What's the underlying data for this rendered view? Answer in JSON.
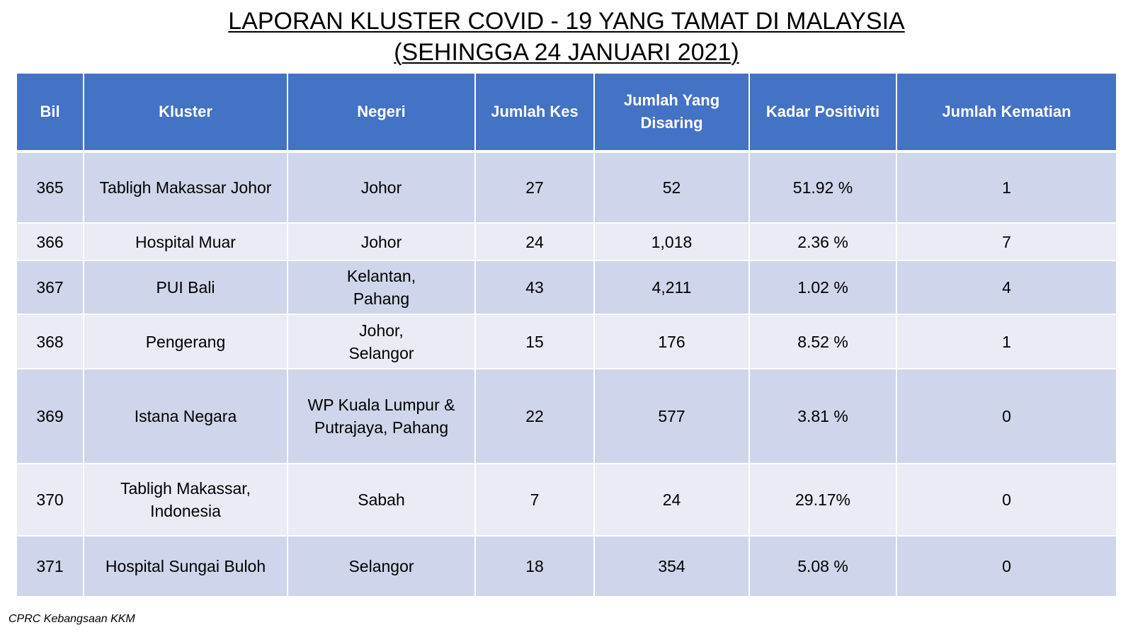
{
  "title_line1": "LAPORAN KLUSTER COVID - 19 YANG TAMAT DI MALAYSIA",
  "title_line2": "(SEHINGGA 24 JANUARI 2021)",
  "headers": {
    "bil": "Bil",
    "kluster": "Kluster",
    "negeri": "Negeri",
    "jumlah_kes": "Jumlah Kes",
    "jumlah_disaring_1": "Jumlah Yang",
    "jumlah_disaring_2": "Disaring",
    "kadar_positiviti": "Kadar Positiviti",
    "jumlah_kematian": "Jumlah Kematian"
  },
  "rows": [
    {
      "bil": "365",
      "kluster_1": "Tabligh Makassar Johor",
      "kluster_2": "",
      "negeri_1": "Johor",
      "negeri_2": "",
      "kes": "27",
      "disaring": "52",
      "positiviti": "51.92 %",
      "kematian": "1"
    },
    {
      "bil": "366",
      "kluster_1": "Hospital Muar",
      "kluster_2": "",
      "negeri_1": "Johor",
      "negeri_2": "",
      "kes": "24",
      "disaring": "1,018",
      "positiviti": "2.36 %",
      "kematian": "7"
    },
    {
      "bil": "367",
      "kluster_1": "PUI Bali",
      "kluster_2": "",
      "negeri_1": "Kelantan,",
      "negeri_2": "Pahang",
      "kes": "43",
      "disaring": "4,211",
      "positiviti": "1.02 %",
      "kematian": "4"
    },
    {
      "bil": "368",
      "kluster_1": "Pengerang",
      "kluster_2": "",
      "negeri_1": "Johor,",
      "negeri_2": "Selangor",
      "kes": "15",
      "disaring": "176",
      "positiviti": "8.52 %",
      "kematian": "1"
    },
    {
      "bil": "369",
      "kluster_1": "Istana Negara",
      "kluster_2": "",
      "negeri_1": "WP Kuala Lumpur &",
      "negeri_2": "Putrajaya, Pahang",
      "kes": "22",
      "disaring": "577",
      "positiviti": "3.81 %",
      "kematian": "0"
    },
    {
      "bil": "370",
      "kluster_1": "Tabligh Makassar,",
      "kluster_2": "Indonesia",
      "negeri_1": "Sabah",
      "negeri_2": "",
      "kes": "7",
      "disaring": "24",
      "positiviti": "29.17%",
      "kematian": "0"
    },
    {
      "bil": "371",
      "kluster_1": "Hospital Sungai Buloh",
      "kluster_2": "",
      "negeri_1": "Selangor",
      "negeri_2": "",
      "kes": "18",
      "disaring": "354",
      "positiviti": "5.08 %",
      "kematian": "0"
    }
  ],
  "footer": "CPRC Kebangsaan KKM",
  "colors": {
    "header_bg": "#4472c4",
    "row_dark": "#cfd5ea",
    "row_light": "#e9ebf5"
  }
}
